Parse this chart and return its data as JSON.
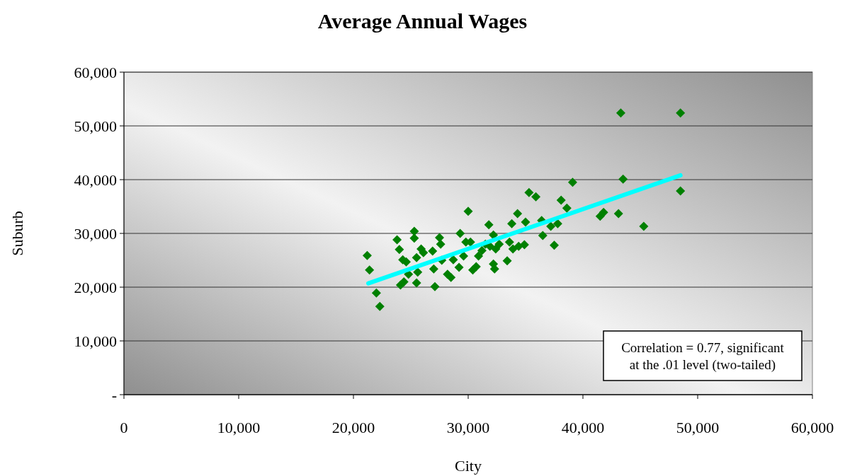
{
  "chart_data": {
    "type": "scatter",
    "title": "Average Annual Wages",
    "xlabel": "City",
    "ylabel": "Suburb",
    "xlim": [
      0,
      60000
    ],
    "xticks": [
      {
        "value": 0,
        "label": "0"
      },
      {
        "value": 10000,
        "label": "10,000"
      },
      {
        "value": 20000,
        "label": "20,000"
      },
      {
        "value": 30000,
        "label": "30,000"
      },
      {
        "value": 40000,
        "label": "40,000"
      },
      {
        "value": 50000,
        "label": "50,000"
      },
      {
        "value": 60000,
        "label": "60,000"
      }
    ],
    "ylim": [
      0,
      60000
    ],
    "yticks": [
      {
        "value": 0,
        "label": "-"
      },
      {
        "value": 10000,
        "label": "10,000"
      },
      {
        "value": 20000,
        "label": "20,000"
      },
      {
        "value": 30000,
        "label": "30,000"
      },
      {
        "value": 40000,
        "label": "40,000"
      },
      {
        "value": 50000,
        "label": "50,000"
      },
      {
        "value": 60000,
        "label": "60,000"
      }
    ],
    "grid": "y",
    "marker": "diamond",
    "annotations": [
      "Correlation = 0.77, significant at the .01 level (two-tailed)"
    ],
    "series": [
      {
        "color": "#008000",
        "x": [
          21200,
          21400,
          22000,
          22300,
          23800,
          24000,
          24100,
          24300,
          24400,
          24600,
          24800,
          25300,
          25300,
          25500,
          25600,
          25500,
          25900,
          26100,
          26900,
          27000,
          27100,
          27500,
          27600,
          27700,
          28200,
          28500,
          28700,
          29200,
          29300,
          29600,
          29800,
          30000,
          30200,
          30400,
          30700,
          30900,
          31200,
          31500,
          31800,
          31900,
          32200,
          32200,
          32300,
          32400,
          32700,
          33400,
          33600,
          33800,
          33900,
          34300,
          34400,
          34900,
          35000,
          35300,
          35900,
          36400,
          36500,
          37200,
          37500,
          37800,
          38100,
          38600,
          39100,
          41500,
          41800,
          43100,
          43300,
          43500,
          45300,
          48500,
          48500
        ],
        "values": [
          25900,
          23200,
          18900,
          16400,
          28800,
          27000,
          20400,
          25100,
          21000,
          24700,
          22400,
          30400,
          29100,
          25500,
          22800,
          20800,
          27100,
          26400,
          26700,
          23400,
          20100,
          29200,
          28000,
          25000,
          22400,
          21800,
          25100,
          23700,
          30000,
          25800,
          28400,
          34100,
          28400,
          23200,
          23800,
          25800,
          26800,
          28000,
          31600,
          27600,
          29700,
          24300,
          23400,
          27100,
          28000,
          24900,
          28400,
          31800,
          27100,
          33700,
          27600,
          27900,
          32100,
          37600,
          36800,
          32400,
          29600,
          31300,
          27800,
          31800,
          36200,
          34700,
          39500,
          33200,
          33900,
          33700,
          52400,
          40100,
          31300,
          52400,
          37900
        ]
      },
      {
        "type": "line",
        "color": "#00ffff",
        "marker": "none",
        "x": [
          21300,
          48500
        ],
        "values": [
          20700,
          40800
        ]
      }
    ]
  }
}
